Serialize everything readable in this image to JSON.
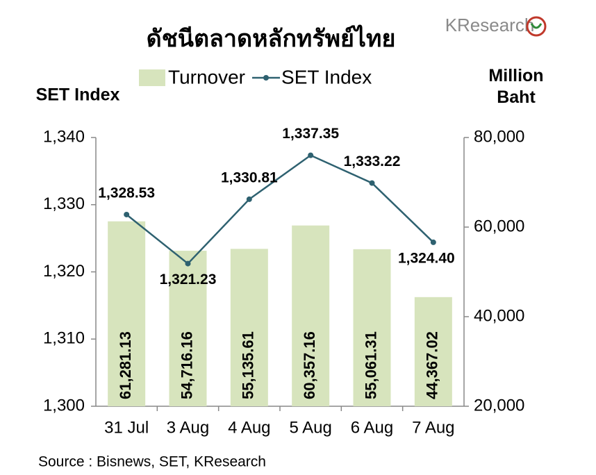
{
  "chart_data": {
    "type": "bar-line",
    "title": "ดัชนีตลาดหลักทรัพย์ไทย",
    "logo": "KResearch",
    "ylabel": "SET Index",
    "y2label": "Million Baht",
    "source": "Source : Bisnews, SET, KResearch",
    "legend": "top",
    "categories": [
      "31 Jul",
      "3 Aug",
      "4 Aug",
      "5 Aug",
      "6 Aug",
      "7 Aug"
    ],
    "series": [
      {
        "name": "Turnover",
        "type": "bar",
        "axis": "y2",
        "color": "#d7e4bd",
        "values": [
          61281.13,
          54716.16,
          55135.61,
          60357.16,
          55061.31,
          44367.02
        ],
        "value_labels": [
          "61,281.13",
          "54,716.16",
          "55,135.61",
          "60,357.16",
          "55,061.31",
          "44,367.02"
        ]
      },
      {
        "name": "SET Index",
        "type": "line",
        "axis": "y",
        "color": "#2e6170",
        "values": [
          1328.53,
          1321.23,
          1330.81,
          1337.35,
          1333.22,
          1324.4
        ],
        "value_labels": [
          "1,328.53",
          "1,321.23",
          "1,330.81",
          "1,337.35",
          "1,333.22",
          "1,324.40"
        ]
      }
    ],
    "ylim": [
      1300,
      1340
    ],
    "yticks": [
      {
        "value": 1300,
        "label": "1,300"
      },
      {
        "value": 1310,
        "label": "1,310"
      },
      {
        "value": 1320,
        "label": "1,320"
      },
      {
        "value": 1330,
        "label": "1,330"
      },
      {
        "value": 1340,
        "label": "1,340"
      }
    ],
    "y2lim": [
      20000,
      80000
    ],
    "y2ticks": [
      {
        "value": 20000,
        "label": "20,000"
      },
      {
        "value": 40000,
        "label": "40,000"
      },
      {
        "value": 60000,
        "label": "60,000"
      },
      {
        "value": 80000,
        "label": "80,000"
      }
    ]
  }
}
